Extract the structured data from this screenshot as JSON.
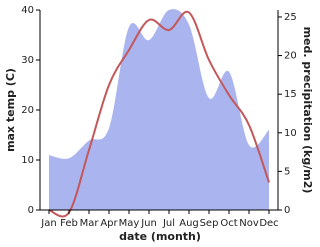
{
  "chart_data": {
    "type": "line-area",
    "x_label": "date (month)",
    "y_label": "max temp (C)",
    "y2_label": "med. precipitation (kg/m2)",
    "categories": [
      "Jan",
      "Feb",
      "Mar",
      "Apr",
      "May",
      "Jun",
      "Jul",
      "Aug",
      "Sep",
      "Oct",
      "Nov",
      "Dec"
    ],
    "series": [
      {
        "name": "med. precipitation",
        "kind": "area",
        "axis": "y2",
        "color": "#aab4ee",
        "values": [
          7.1,
          6.7,
          9,
          10.6,
          23.7,
          22,
          25.9,
          24,
          14.5,
          17.9,
          8.4,
          10.4
        ]
      },
      {
        "name": "max temp",
        "kind": "line",
        "color": "#c4575a",
        "values": [
          0,
          -0.5,
          12,
          25,
          32,
          38,
          36,
          39.5,
          30,
          23,
          17,
          5.5
        ]
      }
    ],
    "ylim": [
      0,
      40
    ],
    "yticks": [
      0,
      10,
      20,
      30,
      40
    ],
    "y2lim": [
      0,
      25.9
    ],
    "y2ticks": [
      0,
      5,
      10,
      15,
      20,
      25
    ]
  }
}
